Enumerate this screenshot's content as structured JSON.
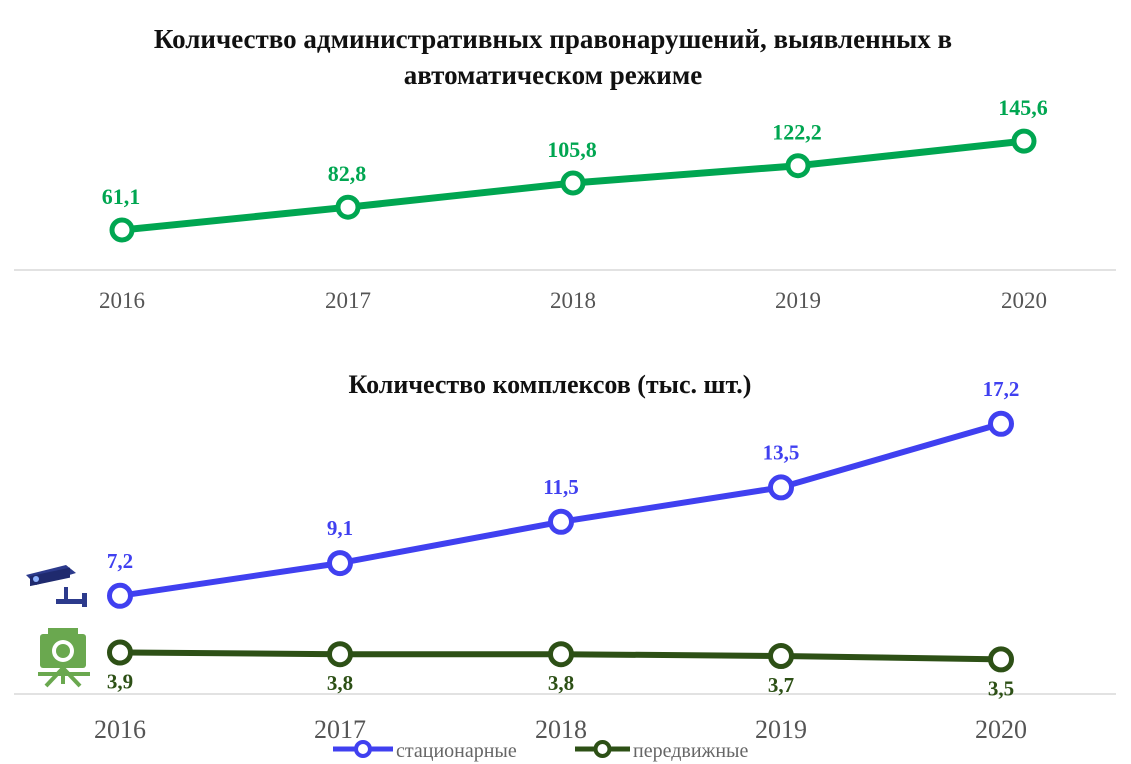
{
  "chart_data": [
    {
      "type": "line",
      "title_line1": "Количество административных правонарушений, выявленных в",
      "title_line2": "автоматическом режиме",
      "categories": [
        "2016",
        "2017",
        "2018",
        "2019",
        "2020"
      ],
      "series": [
        {
          "values": [
            61.1,
            82.8,
            105.8,
            122.2,
            145.6
          ],
          "labels": [
            "61,1",
            "82,8",
            "105,8",
            "122,2",
            "145,6"
          ],
          "color": "#00a651"
        }
      ],
      "xlabel": "",
      "ylabel": "",
      "ylim": [
        0,
        200
      ],
      "grid": false
    },
    {
      "type": "line",
      "title": "Количество комплексов (тыс. шт.)",
      "categories": [
        "2016",
        "2017",
        "2018",
        "2019",
        "2020"
      ],
      "series": [
        {
          "name": "стационарные",
          "values": [
            7.2,
            9.1,
            11.5,
            13.5,
            17.2
          ],
          "labels": [
            "7,2",
            "9,1",
            "11,5",
            "13,5",
            "17,2"
          ],
          "color": "#4040f0"
        },
        {
          "name": "передвижные",
          "values": [
            3.9,
            3.8,
            3.8,
            3.7,
            3.5
          ],
          "labels": [
            "3,9",
            "3,8",
            "3,8",
            "3,7",
            "3,5"
          ],
          "color": "#2d5016"
        }
      ],
      "xlabel": "",
      "ylabel": "",
      "ylim": [
        0,
        20
      ],
      "legend": "bottom",
      "grid": false
    }
  ],
  "icons": {
    "camera": "speed-camera-icon",
    "mobile": "mobile-complex-icon"
  }
}
